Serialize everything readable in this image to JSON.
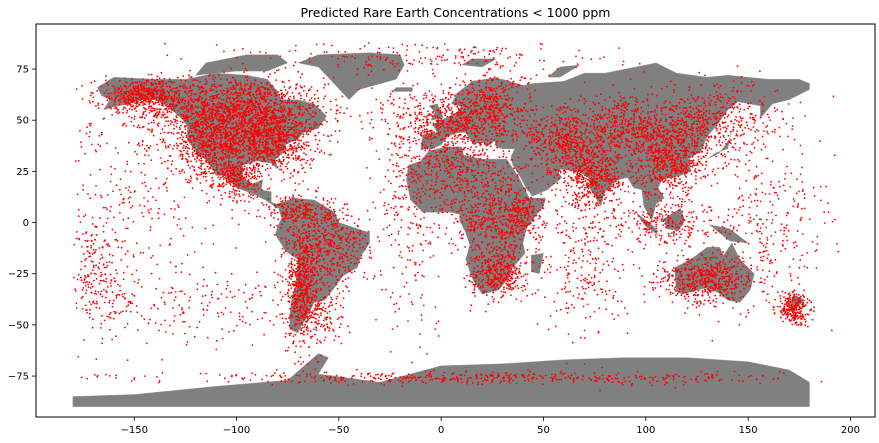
{
  "chart_data": {
    "type": "scatter",
    "title": "Predicted Rare Earth Concentrations < 1000 ppm",
    "xlabel": "",
    "ylabel": "",
    "xlim": [
      -198,
      212
    ],
    "ylim": [
      -95,
      97
    ],
    "xticks": [
      -150,
      -100,
      -50,
      0,
      50,
      100,
      150,
      200
    ],
    "yticks": [
      -75,
      -50,
      -25,
      0,
      25,
      50,
      75
    ],
    "xtick_labels": [
      "−150",
      "−100",
      "−50",
      "0",
      "50",
      "100",
      "150",
      "200"
    ],
    "ytick_labels": [
      "−75",
      "−50",
      "−25",
      "0",
      "25",
      "50",
      "75"
    ],
    "grid": false,
    "land_color": "#808080",
    "point_color": "#ff0000",
    "clusters": [
      {
        "lon": -100,
        "lat": 55,
        "sx": 22,
        "sy": 8,
        "n": 1400
      },
      {
        "lon": -85,
        "lat": 40,
        "sx": 12,
        "sy": 8,
        "n": 900
      },
      {
        "lon": -145,
        "lat": 62,
        "sx": 12,
        "sy": 4,
        "n": 500
      },
      {
        "lon": -115,
        "lat": 38,
        "sx": 8,
        "sy": 8,
        "n": 500
      },
      {
        "lon": -100,
        "lat": 22,
        "sx": 6,
        "sy": 5,
        "n": 260
      },
      {
        "lon": -70,
        "lat": 5,
        "sx": 8,
        "sy": 4,
        "n": 200
      },
      {
        "lon": -55,
        "lat": -12,
        "sx": 10,
        "sy": 10,
        "n": 450
      },
      {
        "lon": -68,
        "lat": -30,
        "sx": 4,
        "sy": 14,
        "n": 500
      },
      {
        "lon": -60,
        "lat": -45,
        "sx": 6,
        "sy": 8,
        "n": 150
      },
      {
        "lon": 5,
        "lat": 50,
        "sx": 14,
        "sy": 7,
        "n": 550
      },
      {
        "lon": 25,
        "lat": 58,
        "sx": 10,
        "sy": 8,
        "n": 300
      },
      {
        "lon": 10,
        "lat": 25,
        "sx": 15,
        "sy": 10,
        "n": 450
      },
      {
        "lon": 25,
        "lat": 0,
        "sx": 10,
        "sy": 8,
        "n": 400
      },
      {
        "lon": 28,
        "lat": -25,
        "sx": 7,
        "sy": 6,
        "n": 400
      },
      {
        "lon": 40,
        "lat": 5,
        "sx": 5,
        "sy": 6,
        "n": 200
      },
      {
        "lon": 75,
        "lat": 22,
        "sx": 8,
        "sy": 7,
        "n": 450
      },
      {
        "lon": 95,
        "lat": 45,
        "sx": 25,
        "sy": 8,
        "n": 900
      },
      {
        "lon": 112,
        "lat": 30,
        "sx": 9,
        "sy": 8,
        "n": 500
      },
      {
        "lon": 135,
        "lat": 50,
        "sx": 15,
        "sy": 10,
        "n": 350
      },
      {
        "lon": 60,
        "lat": 38,
        "sx": 10,
        "sy": 8,
        "n": 350
      },
      {
        "lon": 110,
        "lat": 0,
        "sx": 12,
        "sy": 6,
        "n": 250
      },
      {
        "lon": 130,
        "lat": -28,
        "sx": 12,
        "sy": 6,
        "n": 550
      },
      {
        "lon": 172,
        "lat": -42,
        "sx": 4,
        "sy": 4,
        "n": 250
      },
      {
        "lon": 20,
        "lat": -76,
        "sx": 80,
        "sy": 1.5,
        "n": 450
      },
      {
        "lon": -150,
        "lat": 20,
        "sx": 25,
        "sy": 25,
        "n": 300
      },
      {
        "lon": -15,
        "lat": 10,
        "sx": 8,
        "sy": 30,
        "n": 250
      },
      {
        "lon": 70,
        "lat": -20,
        "sx": 10,
        "sy": 20,
        "n": 250
      },
      {
        "lon": 160,
        "lat": 0,
        "sx": 15,
        "sy": 20,
        "n": 250
      },
      {
        "lon": -170,
        "lat": -25,
        "sx": 8,
        "sy": 15,
        "n": 200
      },
      {
        "lon": 0,
        "lat": 80,
        "sx": 40,
        "sy": 4,
        "n": 200
      },
      {
        "lon": -120,
        "lat": -40,
        "sx": 40,
        "sy": 10,
        "n": 250
      }
    ]
  }
}
